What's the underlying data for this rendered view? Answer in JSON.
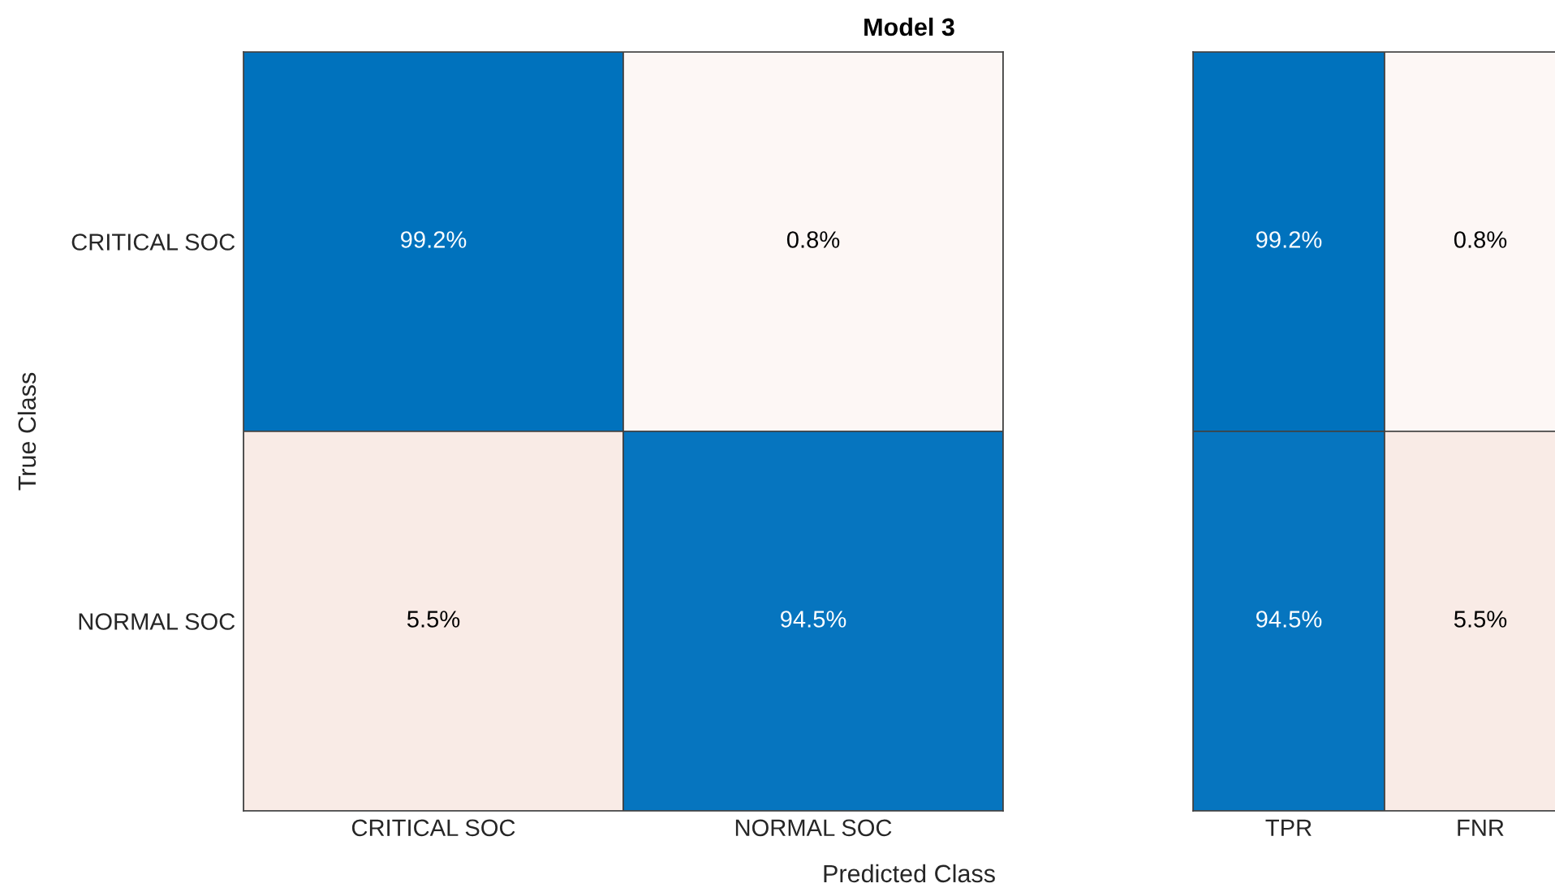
{
  "chart_data": [
    {
      "type": "heatmap",
      "title": "Model 3",
      "xlabel": "Predicted Class",
      "ylabel": "True Class",
      "categories": [
        "CRITICAL SOC",
        "NORMAL SOC"
      ],
      "y_categories": [
        "CRITICAL SOC",
        "NORMAL SOC"
      ],
      "cells": [
        [
          99.2,
          0.8
        ],
        [
          5.5,
          94.5
        ]
      ],
      "cell_labels": [
        [
          "99.2%",
          "0.8%"
        ],
        [
          "5.5%",
          "94.5%"
        ]
      ],
      "colors": [
        [
          "#0072bd",
          "#f9ebe6"
        ],
        [
          "#f9ebe6",
          "#0072bd"
        ]
      ]
    },
    {
      "type": "heatmap",
      "categories": [
        "TPR",
        "FNR"
      ],
      "y_categories": [
        null,
        null
      ],
      "cells": [
        [
          99.2,
          0.8
        ],
        [
          94.5,
          5.5
        ]
      ],
      "cell_labels": [
        [
          "99.2%",
          "0.8%"
        ],
        [
          "94.5%",
          "5.5%"
        ]
      ],
      "colors": [
        [
          "#0072bd",
          "#f9ebe6"
        ],
        [
          "#0072bd",
          "#f9ebe6"
        ]
      ]
    }
  ]
}
